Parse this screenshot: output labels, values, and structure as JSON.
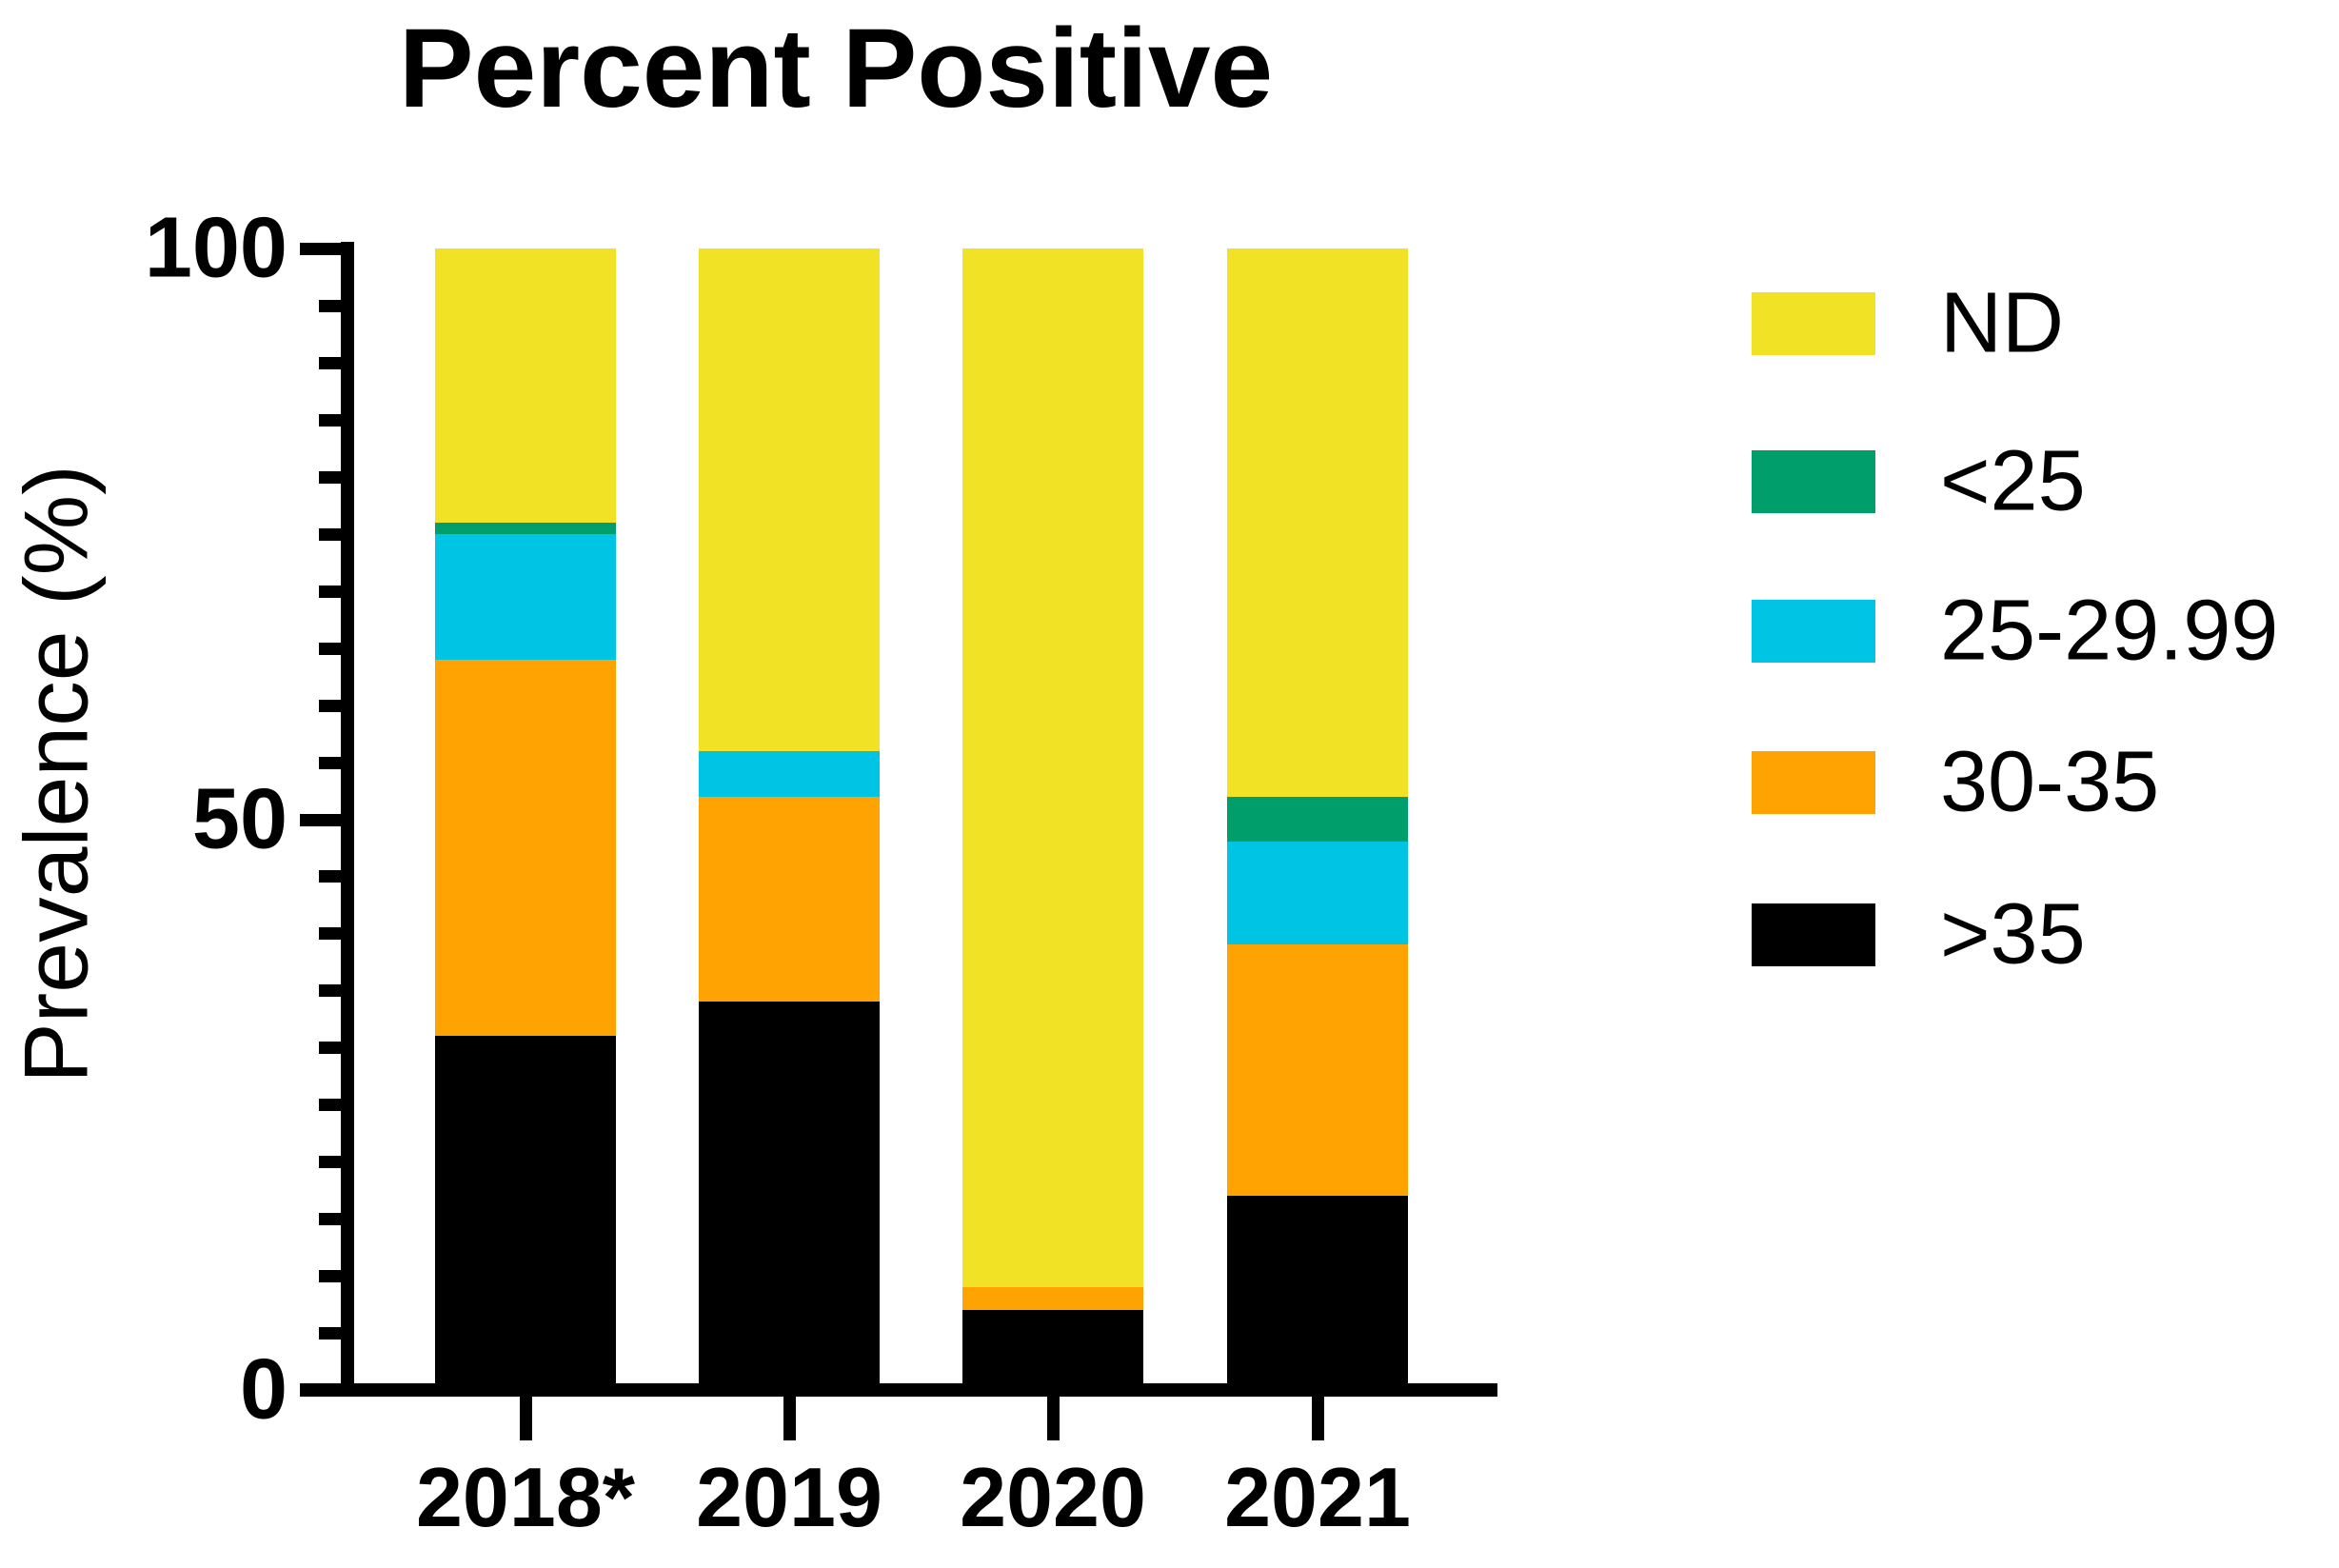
{
  "chart_data": {
    "type": "bar",
    "stacked": true,
    "title": "Percent Positive",
    "ylabel": "Prevalence (%)",
    "xlabel": "",
    "categories": [
      "2018*",
      "2019",
      "2020",
      "2021"
    ],
    "series": [
      {
        "name": ">35",
        "color": "#000000",
        "values": [
          31,
          34,
          7,
          17
        ]
      },
      {
        "name": "30-35",
        "color": "#FFA303",
        "values": [
          33,
          18,
          2,
          22
        ]
      },
      {
        "name": "25-29.99",
        "color": "#00C4E4",
        "values": [
          11,
          4,
          0,
          9
        ]
      },
      {
        "name": "<25",
        "color": "#009E6B",
        "values": [
          1,
          0,
          0,
          4
        ]
      },
      {
        "name": "ND",
        "color": "#F2E226",
        "values": [
          24,
          44,
          91,
          48
        ]
      }
    ],
    "legend_order": [
      "ND",
      "<25",
      "25-29.99",
      "30-35",
      ">35"
    ],
    "legend_position": "right",
    "ylim": [
      0,
      100
    ],
    "yticks_major": [
      0,
      50,
      100
    ],
    "ytick_minor_step": 5,
    "grid": false,
    "axis_color": "#000000"
  }
}
